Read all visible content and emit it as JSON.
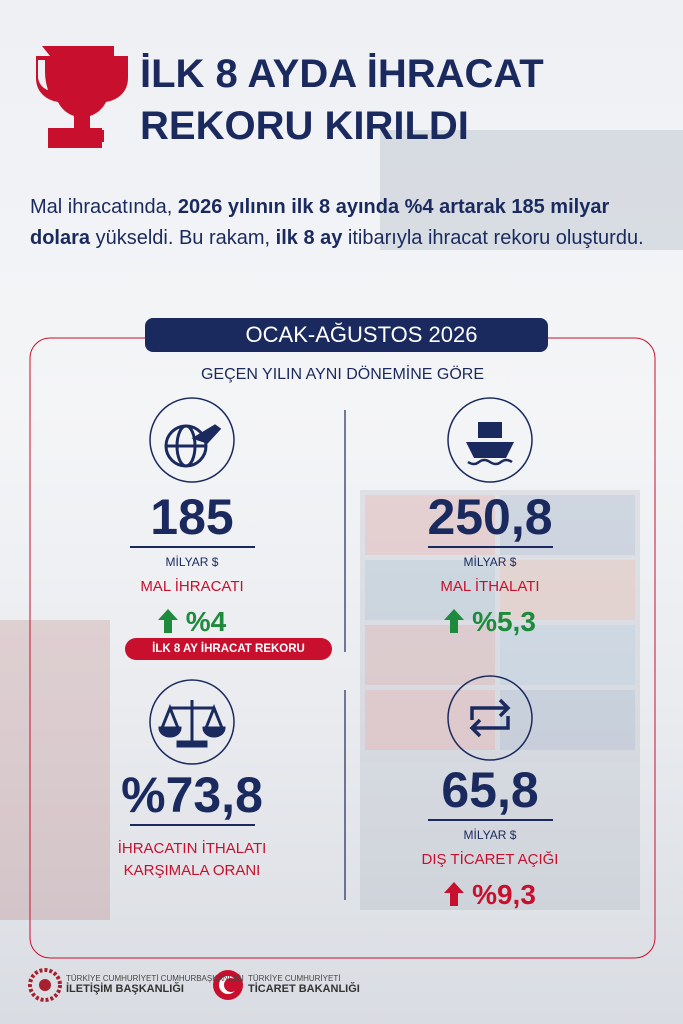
{
  "header": {
    "title_lines": [
      "İLK 8 AYDA İHRACAT",
      "REKORU KIRILDI"
    ],
    "intro": [
      {
        "text": "Mal ihracatında, ",
        "bold": false
      },
      {
        "text": "2026 yılının ilk 8 ayında %4 artarak 185 milyar dolara",
        "bold": true
      },
      {
        "text": " yükseldi. Bu rakam, ",
        "bold": false
      },
      {
        "text": "ilk 8 ay",
        "bold": true
      },
      {
        "text": " itibarıyla ihracat rekoru oluşturdu.",
        "bold": false
      }
    ]
  },
  "panel": {
    "period": "OCAK-AĞUSTOS 2026",
    "subtitle": "GEÇEN YILIN AYNI DÖNEMİNE GÖRE",
    "badge": "İLK 8 AY İHRACAT REKORU",
    "stats": [
      {
        "value": "185",
        "unit": "MİLYAR $",
        "label": [
          "MAL İHRACATI"
        ],
        "change": "%4",
        "trend": "up",
        "trend_color": "#1e8a3c"
      },
      {
        "value": "250,8",
        "unit": "MİLYAR $",
        "label": [
          "MAL İTHALATI"
        ],
        "change": "%5,3",
        "trend": "up",
        "trend_color": "#1e8a3c"
      },
      {
        "value": "%73,8",
        "label": [
          "İHRACATIN İTHALATI",
          "KARŞIMALA ORANI"
        ]
      },
      {
        "value": "65,8",
        "unit": "MİLYAR $",
        "label": [
          "DIŞ TİCARET AÇIĞI"
        ],
        "change": "%9,3",
        "trend": "up",
        "trend_color": "#c8102e"
      }
    ]
  },
  "footer": {
    "logos": [
      {
        "lines": [
          "TÜRKİYE CUMHURİYETİ CUMHURBAŞKANLIĞI",
          "İLETİŞİM BAŞKANLIĞI"
        ]
      },
      {
        "lines": [
          "TÜRKİYE CUMHURİYETİ",
          "TİCARET BAKANLIĞI"
        ]
      }
    ]
  }
}
